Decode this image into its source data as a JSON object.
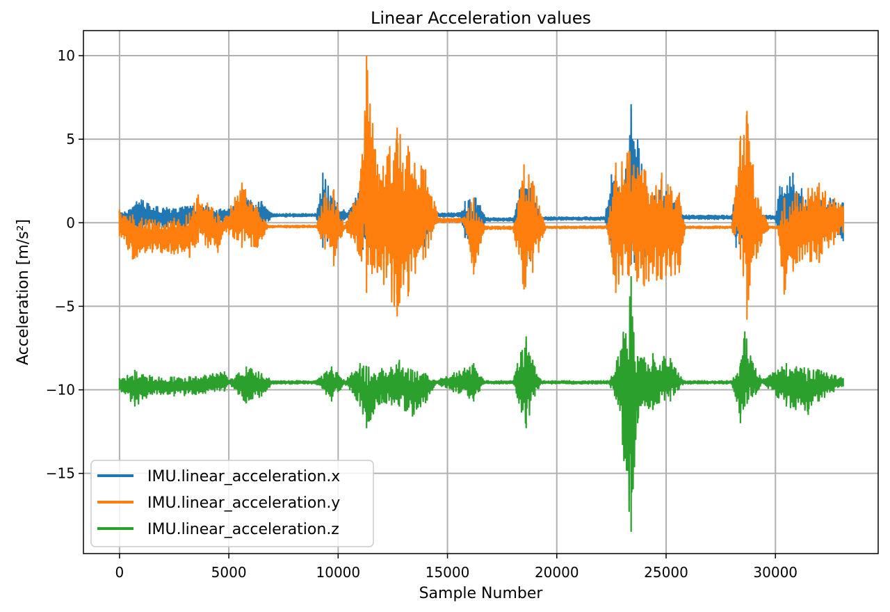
{
  "chart_data": {
    "type": "line",
    "title": "Linear Acceleration values",
    "xlabel": "Sample Number",
    "ylabel": "Acceleration [m/s²]",
    "xlim": [
      -1650,
      34700
    ],
    "ylim": [
      -19.8,
      11.5
    ],
    "xticks": [
      0,
      5000,
      10000,
      15000,
      20000,
      25000,
      30000
    ],
    "yticks": [
      10,
      5,
      0,
      -5,
      -10,
      -15
    ],
    "ytick_labels": [
      "10",
      "5",
      "0",
      "−5",
      "−10",
      "−15"
    ],
    "grid": true,
    "legend_position": "lower-left",
    "series": [
      {
        "name": "IMU.linear_acceleration.x",
        "color": "#1f77b4",
        "envelope": [
          [
            0,
            0.7,
            -0.4
          ],
          [
            1000,
            1.4,
            -0.4
          ],
          [
            2000,
            0.9,
            -0.3
          ],
          [
            3000,
            1.0,
            -0.3
          ],
          [
            4000,
            1.0,
            -0.2
          ],
          [
            4800,
            0.8,
            -0.1
          ],
          [
            5200,
            1.0,
            -0.3
          ],
          [
            5800,
            1.5,
            -0.6
          ],
          [
            6500,
            1.3,
            -0.4
          ],
          [
            7000,
            0.55,
            0.35
          ],
          [
            9000,
            0.55,
            0.35
          ],
          [
            9300,
            3.0,
            -1.5
          ],
          [
            9800,
            1.5,
            -0.9
          ],
          [
            10400,
            0.6,
            0.3
          ],
          [
            11000,
            2.1,
            -1.8
          ],
          [
            11800,
            1.5,
            -1.2
          ],
          [
            12500,
            2.0,
            -1.8
          ],
          [
            13200,
            1.7,
            -1.8
          ],
          [
            14000,
            1.5,
            -1.5
          ],
          [
            14500,
            0.6,
            0.35
          ],
          [
            15600,
            0.6,
            0.35
          ],
          [
            15800,
            1.3,
            -0.9
          ],
          [
            16300,
            1.5,
            -1.2
          ],
          [
            16800,
            0.3,
            0.1
          ],
          [
            18000,
            0.3,
            0.1
          ],
          [
            18300,
            2.0,
            -1.2
          ],
          [
            18800,
            2.1,
            -2.3
          ],
          [
            19300,
            0.35,
            0.15
          ],
          [
            22200,
            0.35,
            0.15
          ],
          [
            22500,
            2.9,
            -1.8
          ],
          [
            23000,
            1.8,
            -1.5
          ],
          [
            23400,
            7.1,
            -2.5
          ],
          [
            24100,
            2.2,
            -2.0
          ],
          [
            25000,
            1.9,
            -1.5
          ],
          [
            25800,
            0.45,
            0.2
          ],
          [
            28000,
            0.45,
            0.2
          ],
          [
            28200,
            2.2,
            -1.5
          ],
          [
            28800,
            2.4,
            -1.3
          ],
          [
            29200,
            0.45,
            0.2
          ],
          [
            30000,
            0.45,
            0.2
          ],
          [
            30200,
            2.2,
            -1.2
          ],
          [
            30800,
            3.0,
            -1.6
          ],
          [
            31500,
            1.5,
            -1.0
          ],
          [
            32500,
            1.5,
            -0.9
          ],
          [
            33100,
            1.2,
            -1.1
          ]
        ]
      },
      {
        "name": "IMU.linear_acceleration.y",
        "color": "#ff7f0e",
        "envelope": [
          [
            0,
            0.8,
            -0.8
          ],
          [
            600,
            0.5,
            -2.2
          ],
          [
            1500,
            0.2,
            -1.8
          ],
          [
            2500,
            0.3,
            -1.9
          ],
          [
            3200,
            0.6,
            -2.1
          ],
          [
            3600,
            1.7,
            -1.2
          ],
          [
            4500,
            0.6,
            -1.8
          ],
          [
            4800,
            0.3,
            -0.5
          ],
          [
            5600,
            2.4,
            -1.5
          ],
          [
            6300,
            0.9,
            -1.5
          ],
          [
            6800,
            -0.15,
            -0.3
          ],
          [
            9000,
            -0.15,
            -0.3
          ],
          [
            9400,
            1.8,
            -1.6
          ],
          [
            9800,
            2.0,
            -2.6
          ],
          [
            10300,
            -0.2,
            -0.35
          ],
          [
            11000,
            2.5,
            -2.0
          ],
          [
            11300,
            10.0,
            -4.2
          ],
          [
            11800,
            3.5,
            -3.0
          ],
          [
            12700,
            5.7,
            -5.6
          ],
          [
            13200,
            4.6,
            -4.4
          ],
          [
            14000,
            3.2,
            -2.1
          ],
          [
            14600,
            0.3,
            0.0
          ],
          [
            15700,
            0.3,
            0.0
          ],
          [
            16200,
            1.5,
            -3.1
          ],
          [
            16700,
            -0.2,
            -0.4
          ],
          [
            18000,
            -0.2,
            -0.4
          ],
          [
            18500,
            3.5,
            -4.0
          ],
          [
            18900,
            2.5,
            -3.0
          ],
          [
            19500,
            -0.2,
            -0.35
          ],
          [
            22300,
            -0.2,
            -0.35
          ],
          [
            22700,
            3.6,
            -4.2
          ],
          [
            23300,
            4.3,
            -3.2
          ],
          [
            24000,
            3.2,
            -3.8
          ],
          [
            24800,
            3.0,
            -3.4
          ],
          [
            25600,
            1.8,
            -3.0
          ],
          [
            25900,
            -0.2,
            -0.35
          ],
          [
            28000,
            -0.2,
            -0.35
          ],
          [
            28400,
            5.2,
            -2.2
          ],
          [
            28700,
            6.7,
            -5.8
          ],
          [
            29200,
            1.5,
            -1.8
          ],
          [
            29700,
            -0.2,
            -0.35
          ],
          [
            30100,
            -0.2,
            -0.35
          ],
          [
            30400,
            1.5,
            -4.3
          ],
          [
            31000,
            1.8,
            -2.4
          ],
          [
            32000,
            2.4,
            -2.4
          ],
          [
            33100,
            1.0,
            -0.6
          ]
        ]
      },
      {
        "name": "IMU.linear_acceleration.z",
        "color": "#2ca02c",
        "envelope": [
          [
            0,
            -9.3,
            -10.0
          ],
          [
            700,
            -8.8,
            -11.0
          ],
          [
            1500,
            -9.2,
            -10.3
          ],
          [
            2500,
            -9.2,
            -10.4
          ],
          [
            3500,
            -9.2,
            -10.3
          ],
          [
            4800,
            -8.9,
            -10.1
          ],
          [
            5000,
            -9.45,
            -9.65
          ],
          [
            5800,
            -8.6,
            -10.8
          ],
          [
            6500,
            -9.0,
            -10.4
          ],
          [
            7000,
            -9.45,
            -9.65
          ],
          [
            9000,
            -9.45,
            -9.65
          ],
          [
            9700,
            -8.6,
            -10.7
          ],
          [
            10300,
            -9.45,
            -9.65
          ],
          [
            11000,
            -8.4,
            -11.0
          ],
          [
            11300,
            -8.6,
            -12.3
          ],
          [
            12000,
            -8.7,
            -10.8
          ],
          [
            12800,
            -8.2,
            -11.0
          ],
          [
            13400,
            -8.8,
            -11.6
          ],
          [
            14000,
            -9.0,
            -10.8
          ],
          [
            14500,
            -9.45,
            -9.65
          ],
          [
            16200,
            -8.4,
            -10.7
          ],
          [
            16700,
            -9.45,
            -9.65
          ],
          [
            18000,
            -9.45,
            -9.65
          ],
          [
            18200,
            -8.4,
            -10.5
          ],
          [
            18600,
            -6.8,
            -12.3
          ],
          [
            19000,
            -8.6,
            -10.4
          ],
          [
            19300,
            -9.45,
            -9.65
          ],
          [
            22400,
            -9.45,
            -9.65
          ],
          [
            22800,
            -8.0,
            -10.9
          ],
          [
            23400,
            -3.2,
            -18.5
          ],
          [
            23700,
            -8.0,
            -12.0
          ],
          [
            24400,
            -7.8,
            -11.2
          ],
          [
            25200,
            -8.1,
            -10.7
          ],
          [
            25800,
            -9.45,
            -9.65
          ],
          [
            28000,
            -9.45,
            -9.65
          ],
          [
            28400,
            -8.4,
            -12.0
          ],
          [
            28600,
            -6.5,
            -11.0
          ],
          [
            29100,
            -8.7,
            -10.3
          ],
          [
            29400,
            -9.4,
            -9.6
          ],
          [
            30500,
            -8.4,
            -11.0
          ],
          [
            31500,
            -8.7,
            -11.5
          ],
          [
            32000,
            -8.8,
            -10.7
          ],
          [
            33100,
            -9.3,
            -9.8
          ]
        ]
      }
    ]
  }
}
